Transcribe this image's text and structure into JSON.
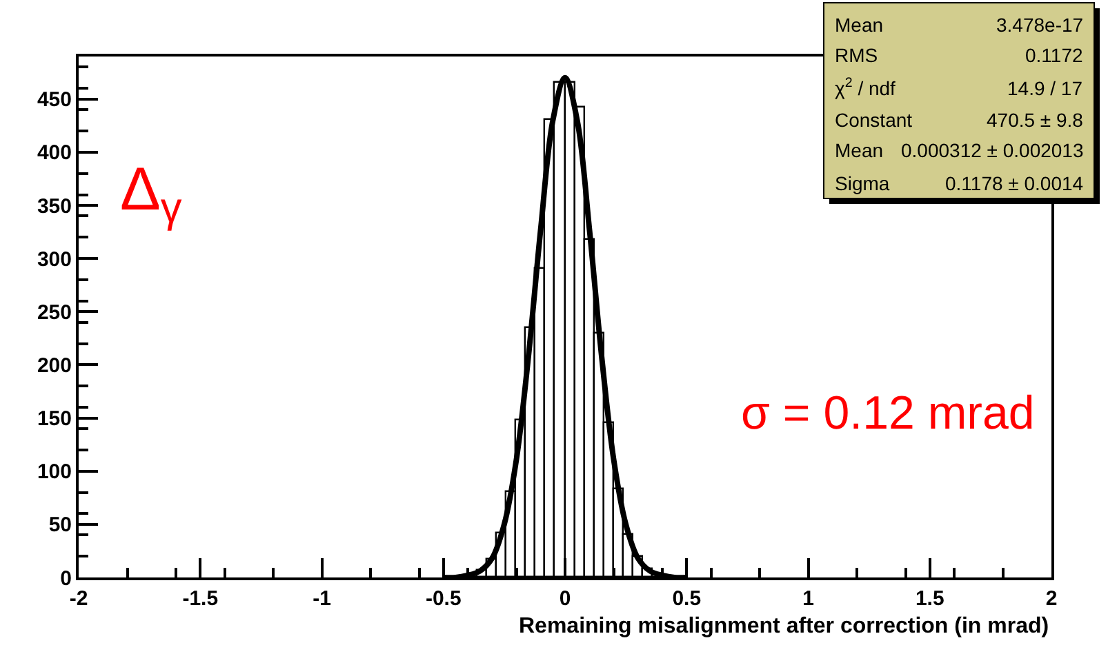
{
  "chart_data": {
    "type": "histogram",
    "xlabel": "Remaining misalignment after correction (in mrad)",
    "xlim": [
      -2,
      2
    ],
    "ylim": [
      0,
      490
    ],
    "xticks": [
      -2,
      -1.5,
      -1,
      -0.5,
      0,
      0.5,
      1,
      1.5,
      2
    ],
    "yticks": [
      0,
      50,
      100,
      150,
      200,
      250,
      300,
      350,
      400,
      450
    ],
    "series": [
      {
        "color": "#000000",
        "bins": [
          -0.44,
          -0.4,
          -0.36,
          -0.32,
          -0.28,
          -0.24,
          -0.2,
          -0.16,
          -0.12,
          -0.08,
          -0.04,
          0,
          0.04,
          0.08,
          0.12,
          0.16,
          0.2,
          0.24,
          0.28,
          0.32,
          0.36,
          0.4,
          0.44
        ],
        "values": [
          null,
          2,
          7,
          17,
          42,
          80,
          148,
          235,
          290,
          430,
          465,
          465,
          442,
          318,
          230,
          145,
          83,
          40,
          19,
          8,
          3,
          null
        ]
      },
      {
        "type": "line",
        "color": "#000000",
        "x": [
          -0.5,
          -0.45,
          -0.4,
          -0.35,
          -0.3,
          -0.25,
          -0.2,
          -0.15,
          -0.1,
          -0.05,
          0,
          0.05,
          0.1,
          0.15,
          0.2,
          0.25,
          0.3,
          0.35,
          0.4,
          0.45,
          0.5
        ],
        "values": [
          0,
          0,
          2,
          6,
          18,
          50,
          111,
          209,
          328,
          430,
          470,
          430,
          328,
          209,
          111,
          50,
          18,
          6,
          2,
          0,
          0
        ]
      }
    ],
    "annotations": [
      "Mean",
      "3.478e-17",
      "RMS",
      "0.1172",
      "χ$^{2}$ / ndf",
      "14.9 / 17",
      "Constant",
      "470.5 ± 9.8",
      "Mean",
      "0.000312 ± 0.002013",
      "Sigma",
      "0.1178 ± 0.0014",
      "Δ$_{γ}$",
      "σ = 0.12 mrad"
    ]
  }
}
